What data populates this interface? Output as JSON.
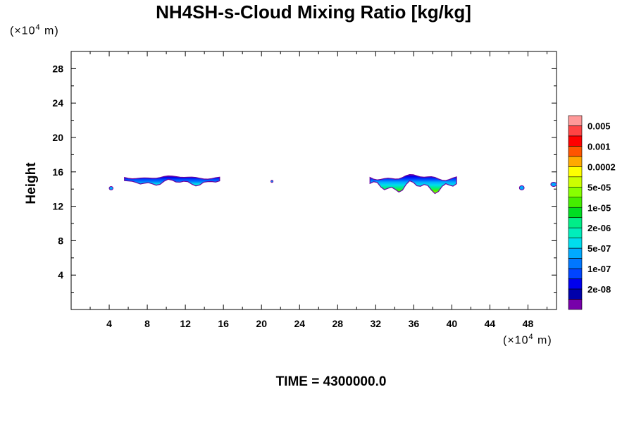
{
  "chart_data": {
    "type": "heatmap",
    "title": "NH4SH-s-Cloud Mixing Ratio [kg/kg]",
    "ylabel": "Height",
    "y_scale_label": "(×10",
    "y_scale_exp": "4",
    "y_scale_unit": "m)",
    "x_scale_label": "(×10",
    "x_scale_exp": "4",
    "x_scale_unit": "m)",
    "footer": "TIME = 4300000.0",
    "xlim": [
      0,
      51
    ],
    "ylim": [
      0,
      30
    ],
    "x_ticks": [
      4,
      8,
      12,
      16,
      20,
      24,
      28,
      32,
      36,
      40,
      44,
      48
    ],
    "y_ticks": [
      4,
      8,
      12,
      16,
      20,
      24,
      28
    ],
    "legend": {
      "labels": [
        "0.005",
        "0.001",
        "0.0002",
        "5e-05",
        "1e-05",
        "2e-06",
        "5e-07",
        "1e-07",
        "2e-08"
      ],
      "colors": [
        "#ff9999",
        "#ff4444",
        "#ff0000",
        "#ff5500",
        "#ffaa00",
        "#ffff00",
        "#ccff00",
        "#88ff00",
        "#44ee00",
        "#00dd22",
        "#00ee88",
        "#00eebb",
        "#00ddee",
        "#00aaff",
        "#0077ff",
        "#0044ff",
        "#0000ee",
        "#0000aa",
        "#7700aa"
      ]
    },
    "cloud_regions": [
      {
        "name": "cloud-left",
        "x_range": [
          5.6,
          15.6
        ],
        "y_range": [
          14.1,
          15.8
        ]
      },
      {
        "name": "cloud-right",
        "x_range": [
          31.4,
          40.5
        ],
        "y_range": [
          13.0,
          16.2
        ]
      },
      {
        "name": "speck-left",
        "x_range": [
          4.0,
          4.4
        ],
        "y_range": [
          13.9,
          14.3
        ]
      },
      {
        "name": "speck-mid",
        "x_range": [
          21.0,
          21.2
        ],
        "y_range": [
          14.8,
          15.0
        ]
      },
      {
        "name": "speck-right",
        "x_range": [
          47.1,
          47.6
        ],
        "y_range": [
          13.9,
          14.4
        ]
      },
      {
        "name": "speck-edge",
        "x_range": [
          50.4,
          51.0
        ],
        "y_range": [
          14.3,
          14.8
        ]
      }
    ]
  }
}
